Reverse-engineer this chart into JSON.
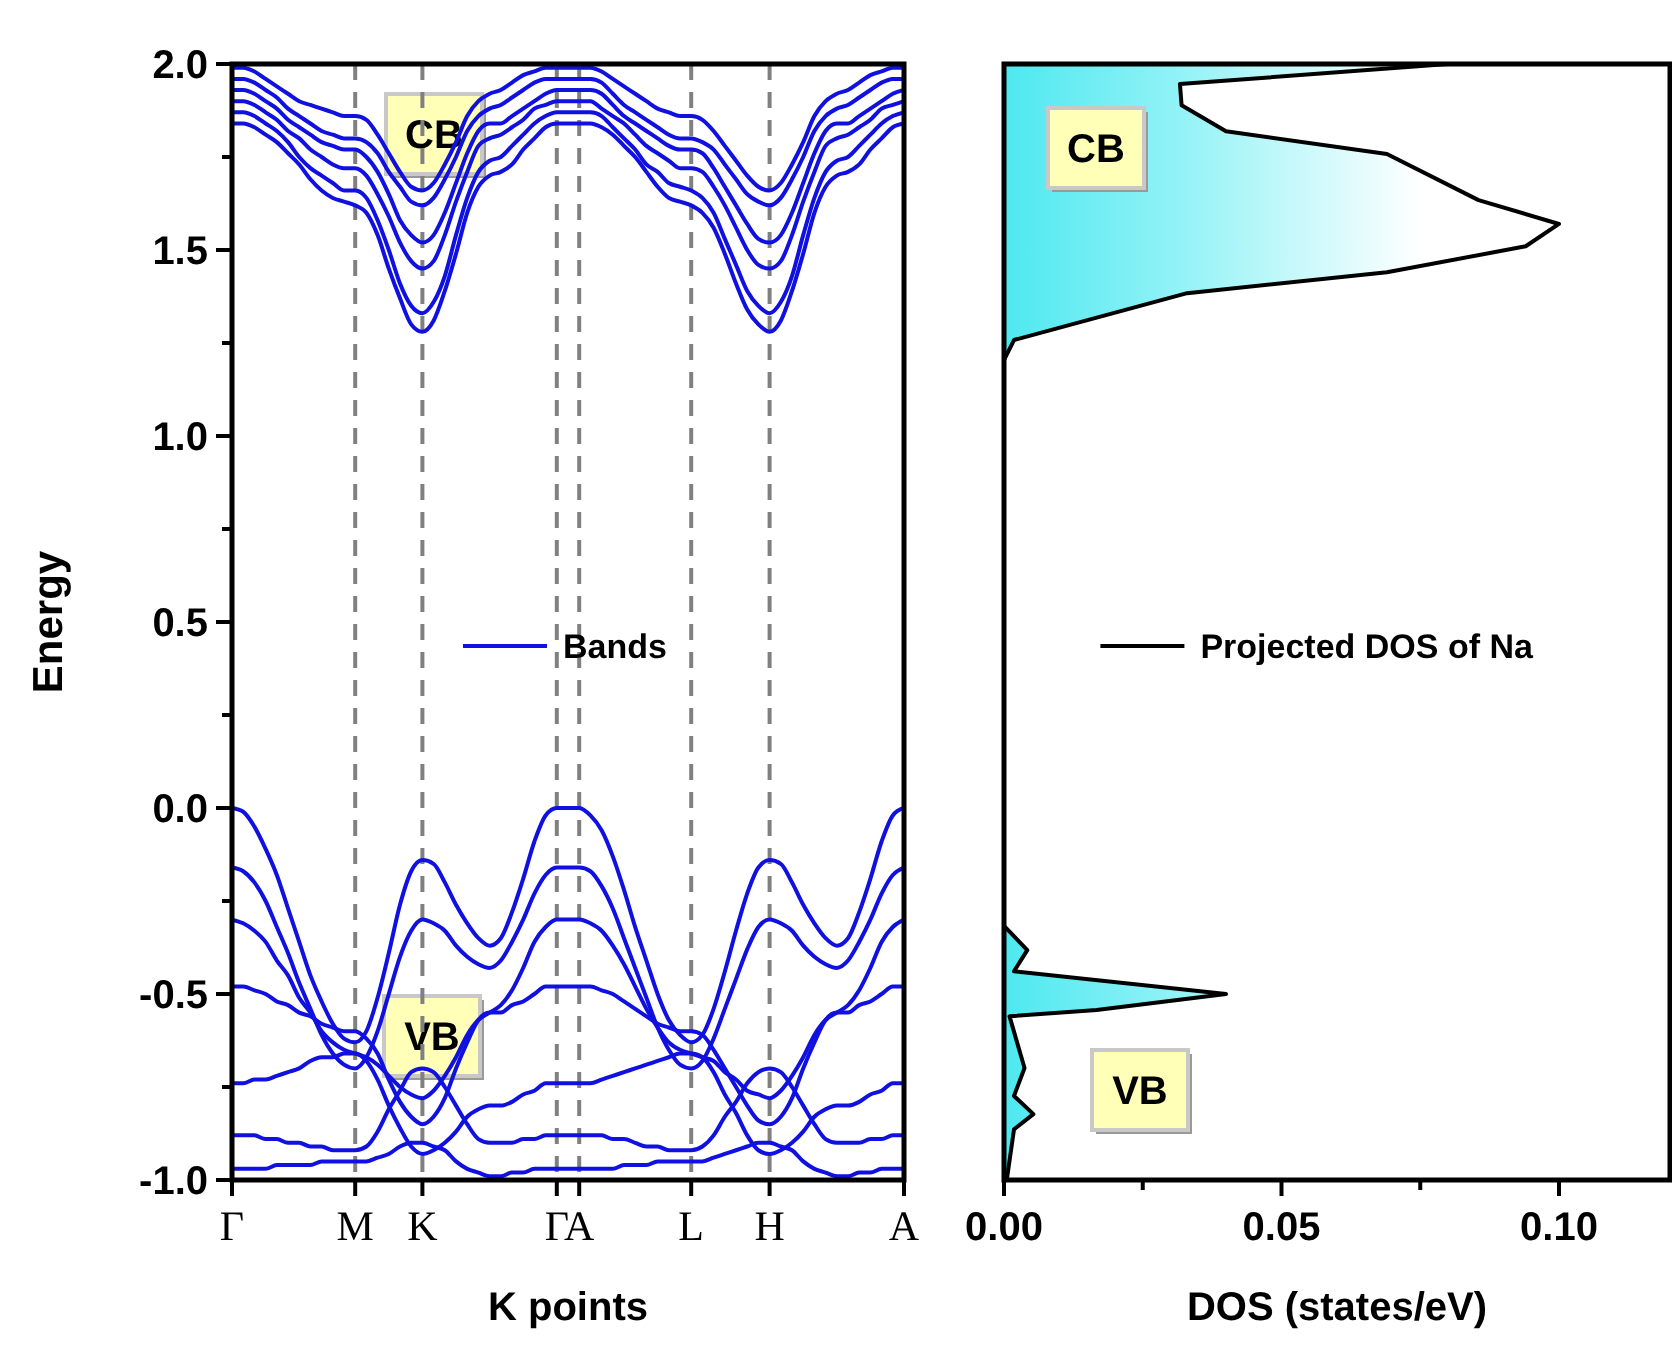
{
  "chart_data": [
    {
      "type": "line",
      "xlabel": "K points",
      "ylabel": "Energy",
      "legend": "center",
      "categories": [
        "Γ",
        null,
        null,
        null,
        null,
        null,
        null,
        null,
        null,
        null,
        null,
        "M",
        null,
        null,
        null,
        null,
        null,
        "K",
        null,
        null,
        null,
        null,
        null,
        null,
        null,
        null,
        null,
        null,
        null,
        "Γ",
        null,
        "A",
        null,
        null,
        null,
        null,
        null,
        null,
        null,
        null,
        null,
        "L",
        null,
        null,
        null,
        null,
        null,
        null,
        "H",
        null,
        null,
        null,
        null,
        null,
        null,
        null,
        null,
        null,
        null,
        null,
        "A"
      ],
      "ylim": [
        -1,
        2
      ],
      "yticks": [
        {
          "value": -1,
          "label": "-1.0"
        },
        {
          "value": -0.75,
          "label": null
        },
        {
          "value": -0.5,
          "label": "-0.5"
        },
        {
          "value": -0.25,
          "label": null
        },
        {
          "value": 0,
          "label": "0.0"
        },
        {
          "value": 0.25,
          "label": null
        },
        {
          "value": 0.5,
          "label": "0.5"
        },
        {
          "value": 0.75,
          "label": null
        },
        {
          "value": 1,
          "label": "1.0"
        },
        {
          "value": 1.25,
          "label": null
        },
        {
          "value": 1.5,
          "label": "1.5"
        },
        {
          "value": 1.75,
          "label": null
        },
        {
          "value": 2,
          "label": "2.0"
        }
      ],
      "grid": "x",
      "annotations": [
        "CB",
        "VB"
      ],
      "series": [
        {
          "name": "Bands",
          "color": "#1010e0",
          "values": [
            0,
            -0.01,
            -0.05,
            -0.11,
            -0.18,
            -0.27,
            -0.36,
            -0.45,
            -0.52,
            -0.58,
            -0.62,
            -0.63,
            -0.6,
            -0.51,
            -0.39,
            -0.26,
            -0.17,
            -0.14,
            -0.15,
            -0.2,
            -0.26,
            -0.31,
            -0.35,
            -0.37,
            -0.35,
            -0.28,
            -0.19,
            -0.09,
            -0.02,
            0,
            0,
            0,
            -0.02,
            -0.06,
            -0.13,
            -0.22,
            -0.32,
            -0.41,
            -0.5,
            -0.57,
            -0.61,
            -0.63,
            -0.61,
            -0.54,
            -0.44,
            -0.33,
            -0.23,
            -0.16,
            -0.14,
            -0.15,
            -0.2,
            -0.26,
            -0.31,
            -0.35,
            -0.37,
            -0.35,
            -0.28,
            -0.19,
            -0.09,
            -0.02,
            0
          ]
        },
        {
          "color": "#1010e0",
          "values": [
            -0.16,
            -0.17,
            -0.2,
            -0.25,
            -0.32,
            -0.39,
            -0.47,
            -0.54,
            -0.61,
            -0.66,
            -0.69,
            -0.7,
            -0.67,
            -0.6,
            -0.5,
            -0.4,
            -0.33,
            -0.3,
            -0.31,
            -0.33,
            -0.37,
            -0.4,
            -0.42,
            -0.43,
            -0.41,
            -0.36,
            -0.3,
            -0.23,
            -0.18,
            -0.16,
            -0.16,
            -0.16,
            -0.17,
            -0.21,
            -0.27,
            -0.35,
            -0.43,
            -0.51,
            -0.59,
            -0.65,
            -0.69,
            -0.7,
            -0.68,
            -0.62,
            -0.54,
            -0.46,
            -0.38,
            -0.32,
            -0.3,
            -0.31,
            -0.33,
            -0.37,
            -0.4,
            -0.42,
            -0.43,
            -0.41,
            -0.36,
            -0.3,
            -0.23,
            -0.18,
            -0.16
          ]
        },
        {
          "color": "#1010e0",
          "values": [
            -0.3,
            -0.31,
            -0.33,
            -0.36,
            -0.41,
            -0.45,
            -0.51,
            -0.55,
            -0.6,
            -0.63,
            -0.65,
            -0.66,
            -0.67,
            -0.69,
            -0.72,
            -0.75,
            -0.77,
            -0.78,
            -0.76,
            -0.72,
            -0.67,
            -0.61,
            -0.57,
            -0.55,
            -0.53,
            -0.49,
            -0.43,
            -0.36,
            -0.32,
            -0.3,
            -0.3,
            -0.3,
            -0.31,
            -0.33,
            -0.37,
            -0.42,
            -0.48,
            -0.54,
            -0.59,
            -0.63,
            -0.65,
            -0.66,
            -0.67,
            -0.68,
            -0.71,
            -0.73,
            -0.76,
            -0.77,
            -0.78,
            -0.76,
            -0.72,
            -0.67,
            -0.61,
            -0.57,
            -0.55,
            -0.53,
            -0.49,
            -0.43,
            -0.36,
            -0.32,
            -0.3
          ]
        },
        {
          "color": "#1010e0",
          "values": [
            -0.48,
            -0.48,
            -0.49,
            -0.5,
            -0.52,
            -0.53,
            -0.55,
            -0.56,
            -0.58,
            -0.59,
            -0.6,
            -0.6,
            -0.62,
            -0.66,
            -0.73,
            -0.79,
            -0.83,
            -0.85,
            -0.83,
            -0.78,
            -0.7,
            -0.63,
            -0.57,
            -0.55,
            -0.55,
            -0.53,
            -0.52,
            -0.5,
            -0.48,
            -0.48,
            -0.48,
            -0.48,
            -0.48,
            -0.49,
            -0.5,
            -0.52,
            -0.54,
            -0.56,
            -0.58,
            -0.59,
            -0.6,
            -0.6,
            -0.61,
            -0.65,
            -0.7,
            -0.75,
            -0.8,
            -0.84,
            -0.85,
            -0.83,
            -0.78,
            -0.7,
            -0.63,
            -0.57,
            -0.55,
            -0.55,
            -0.53,
            -0.52,
            -0.5,
            -0.48,
            -0.48
          ]
        },
        {
          "color": "#1010e0",
          "values": [
            -0.74,
            -0.74,
            -0.73,
            -0.73,
            -0.72,
            -0.71,
            -0.7,
            -0.68,
            -0.67,
            -0.67,
            -0.66,
            -0.66,
            -0.68,
            -0.73,
            -0.8,
            -0.86,
            -0.91,
            -0.93,
            -0.92,
            -0.9,
            -0.87,
            -0.83,
            -0.81,
            -0.8,
            -0.8,
            -0.79,
            -0.77,
            -0.76,
            -0.74,
            -0.74,
            -0.74,
            -0.74,
            -0.74,
            -0.73,
            -0.72,
            -0.71,
            -0.7,
            -0.69,
            -0.68,
            -0.67,
            -0.66,
            -0.66,
            -0.67,
            -0.71,
            -0.77,
            -0.82,
            -0.88,
            -0.92,
            -0.93,
            -0.92,
            -0.9,
            -0.87,
            -0.83,
            -0.81,
            -0.8,
            -0.8,
            -0.79,
            -0.77,
            -0.76,
            -0.74,
            -0.74
          ]
        },
        {
          "color": "#1010e0",
          "values": [
            -0.88,
            -0.88,
            -0.88,
            -0.89,
            -0.89,
            -0.9,
            -0.9,
            -0.91,
            -0.91,
            -0.92,
            -0.92,
            -0.92,
            -0.91,
            -0.87,
            -0.81,
            -0.76,
            -0.71,
            -0.7,
            -0.71,
            -0.75,
            -0.8,
            -0.85,
            -0.89,
            -0.9,
            -0.9,
            -0.9,
            -0.89,
            -0.89,
            -0.88,
            -0.88,
            -0.88,
            -0.88,
            -0.88,
            -0.88,
            -0.89,
            -0.89,
            -0.9,
            -0.91,
            -0.91,
            -0.92,
            -0.92,
            -0.92,
            -0.91,
            -0.88,
            -0.83,
            -0.79,
            -0.74,
            -0.71,
            -0.7,
            -0.71,
            -0.75,
            -0.8,
            -0.85,
            -0.89,
            -0.9,
            -0.9,
            -0.9,
            -0.89,
            -0.89,
            -0.88,
            -0.88
          ]
        },
        {
          "color": "#1010e0",
          "values": [
            -0.97,
            -0.97,
            -0.97,
            -0.97,
            -0.96,
            -0.96,
            -0.96,
            -0.96,
            -0.95,
            -0.95,
            -0.95,
            -0.95,
            -0.95,
            -0.94,
            -0.93,
            -0.91,
            -0.9,
            -0.9,
            -0.91,
            -0.92,
            -0.95,
            -0.97,
            -0.98,
            -0.99,
            -0.99,
            -0.98,
            -0.98,
            -0.97,
            -0.97,
            -0.97,
            -0.97,
            -0.97,
            -0.97,
            -0.97,
            -0.97,
            -0.96,
            -0.96,
            -0.96,
            -0.95,
            -0.95,
            -0.95,
            -0.95,
            -0.95,
            -0.94,
            -0.93,
            -0.92,
            -0.91,
            -0.9,
            -0.9,
            -0.91,
            -0.92,
            -0.95,
            -0.97,
            -0.98,
            -0.99,
            -0.99,
            -0.98,
            -0.98,
            -0.97,
            -0.97,
            -0.97
          ]
        },
        {
          "color": "#1010e0",
          "values": [
            1.84,
            1.84,
            1.83,
            1.81,
            1.79,
            1.76,
            1.73,
            1.69,
            1.66,
            1.64,
            1.63,
            1.62,
            1.6,
            1.54,
            1.45,
            1.37,
            1.3,
            1.28,
            1.31,
            1.39,
            1.49,
            1.6,
            1.67,
            1.7,
            1.71,
            1.73,
            1.77,
            1.8,
            1.83,
            1.84,
            1.84,
            1.84,
            1.84,
            1.83,
            1.81,
            1.78,
            1.75,
            1.71,
            1.67,
            1.64,
            1.63,
            1.62,
            1.6,
            1.56,
            1.49,
            1.41,
            1.34,
            1.3,
            1.28,
            1.31,
            1.39,
            1.49,
            1.6,
            1.67,
            1.7,
            1.71,
            1.73,
            1.77,
            1.8,
            1.83,
            1.84
          ]
        },
        {
          "color": "#1010e0",
          "values": [
            1.87,
            1.87,
            1.86,
            1.84,
            1.82,
            1.79,
            1.75,
            1.72,
            1.7,
            1.68,
            1.66,
            1.66,
            1.64,
            1.58,
            1.5,
            1.41,
            1.35,
            1.33,
            1.36,
            1.43,
            1.54,
            1.64,
            1.71,
            1.74,
            1.75,
            1.78,
            1.81,
            1.84,
            1.86,
            1.87,
            1.87,
            1.87,
            1.87,
            1.86,
            1.83,
            1.8,
            1.77,
            1.73,
            1.71,
            1.68,
            1.67,
            1.66,
            1.64,
            1.6,
            1.53,
            1.46,
            1.39,
            1.35,
            1.33,
            1.36,
            1.43,
            1.54,
            1.64,
            1.71,
            1.74,
            1.75,
            1.78,
            1.81,
            1.84,
            1.86,
            1.87
          ]
        },
        {
          "color": "#1010e0",
          "values": [
            1.9,
            1.9,
            1.89,
            1.87,
            1.85,
            1.82,
            1.8,
            1.77,
            1.75,
            1.73,
            1.72,
            1.72,
            1.7,
            1.65,
            1.59,
            1.52,
            1.47,
            1.45,
            1.47,
            1.54,
            1.63,
            1.71,
            1.78,
            1.8,
            1.81,
            1.83,
            1.85,
            1.88,
            1.89,
            1.9,
            1.9,
            1.9,
            1.9,
            1.88,
            1.86,
            1.84,
            1.81,
            1.78,
            1.76,
            1.74,
            1.72,
            1.72,
            1.71,
            1.67,
            1.62,
            1.56,
            1.5,
            1.46,
            1.45,
            1.47,
            1.54,
            1.63,
            1.71,
            1.78,
            1.8,
            1.81,
            1.83,
            1.85,
            1.88,
            1.89,
            1.9
          ]
        },
        {
          "color": "#1010e0",
          "values": [
            1.93,
            1.93,
            1.92,
            1.9,
            1.88,
            1.85,
            1.83,
            1.81,
            1.79,
            1.78,
            1.77,
            1.77,
            1.75,
            1.71,
            1.65,
            1.58,
            1.54,
            1.52,
            1.54,
            1.6,
            1.68,
            1.76,
            1.82,
            1.84,
            1.84,
            1.86,
            1.88,
            1.9,
            1.92,
            1.93,
            1.93,
            1.93,
            1.93,
            1.92,
            1.89,
            1.86,
            1.84,
            1.82,
            1.8,
            1.78,
            1.77,
            1.77,
            1.76,
            1.72,
            1.67,
            1.62,
            1.57,
            1.53,
            1.52,
            1.54,
            1.6,
            1.68,
            1.76,
            1.82,
            1.84,
            1.84,
            1.86,
            1.88,
            1.9,
            1.92,
            1.93
          ]
        },
        {
          "color": "#1010e0",
          "values": [
            1.96,
            1.96,
            1.95,
            1.93,
            1.91,
            1.88,
            1.86,
            1.84,
            1.82,
            1.81,
            1.8,
            1.8,
            1.79,
            1.76,
            1.71,
            1.67,
            1.63,
            1.62,
            1.64,
            1.69,
            1.75,
            1.82,
            1.86,
            1.88,
            1.89,
            1.91,
            1.93,
            1.95,
            1.96,
            1.96,
            1.96,
            1.96,
            1.96,
            1.95,
            1.92,
            1.89,
            1.87,
            1.85,
            1.83,
            1.81,
            1.8,
            1.8,
            1.79,
            1.77,
            1.73,
            1.69,
            1.65,
            1.63,
            1.62,
            1.64,
            1.69,
            1.75,
            1.82,
            1.86,
            1.88,
            1.89,
            1.91,
            1.93,
            1.95,
            1.96,
            1.96
          ]
        },
        {
          "color": "#1010e0",
          "values": [
            1.99,
            1.99,
            1.98,
            1.96,
            1.94,
            1.92,
            1.9,
            1.89,
            1.88,
            1.87,
            1.86,
            1.86,
            1.85,
            1.81,
            1.76,
            1.71,
            1.67,
            1.66,
            1.68,
            1.73,
            1.79,
            1.86,
            1.9,
            1.92,
            1.93,
            1.95,
            1.97,
            1.98,
            1.99,
            1.99,
            1.99,
            1.99,
            1.99,
            1.98,
            1.96,
            1.94,
            1.92,
            1.9,
            1.88,
            1.87,
            1.86,
            1.86,
            1.85,
            1.82,
            1.78,
            1.74,
            1.7,
            1.67,
            1.66,
            1.68,
            1.73,
            1.79,
            1.86,
            1.9,
            1.92,
            1.93,
            1.95,
            1.97,
            1.98,
            1.99,
            1.99
          ]
        }
      ]
    },
    {
      "type": "area",
      "orientation": "horizontal",
      "xlabel": "DOS (states/eV)",
      "legend": "center",
      "tick_labels": "x",
      "x": [
        -1,
        -0.864,
        -0.823,
        -0.774,
        -0.699,
        -0.56,
        -0.543,
        -0.5,
        -0.439,
        -0.382,
        -0.317,
        -0.247,
        1.204,
        1.258,
        1.384,
        1.44,
        1.51,
        1.57,
        1.634,
        1.758,
        1.819,
        1.889,
        1.946,
        2
      ],
      "xlim": [
        0,
        0.12
      ],
      "xticks": [
        {
          "value": 0,
          "label": "0.00"
        },
        {
          "value": 0.025,
          "label": null
        },
        {
          "value": 0.05,
          "label": "0.05"
        },
        {
          "value": 0.075,
          "label": null
        },
        {
          "value": 0.1,
          "label": "0.10"
        }
      ],
      "ylim": [
        -1,
        2
      ],
      "annotations": [
        "CB",
        "VB"
      ],
      "series": [
        {
          "name": "Projected DOS of Na",
          "color": "#000000",
          "values": [
            0.0005,
            0.0018,
            0.0053,
            0.0018,
            0.0037,
            0.001,
            0.0167,
            0.04,
            0.0018,
            0.0042,
            0,
            0,
            0,
            0.0018,
            0.033,
            0.069,
            0.094,
            0.1,
            0.0855,
            0.069,
            0.04,
            0.032,
            0.0317,
            0.08
          ]
        }
      ]
    }
  ]
}
